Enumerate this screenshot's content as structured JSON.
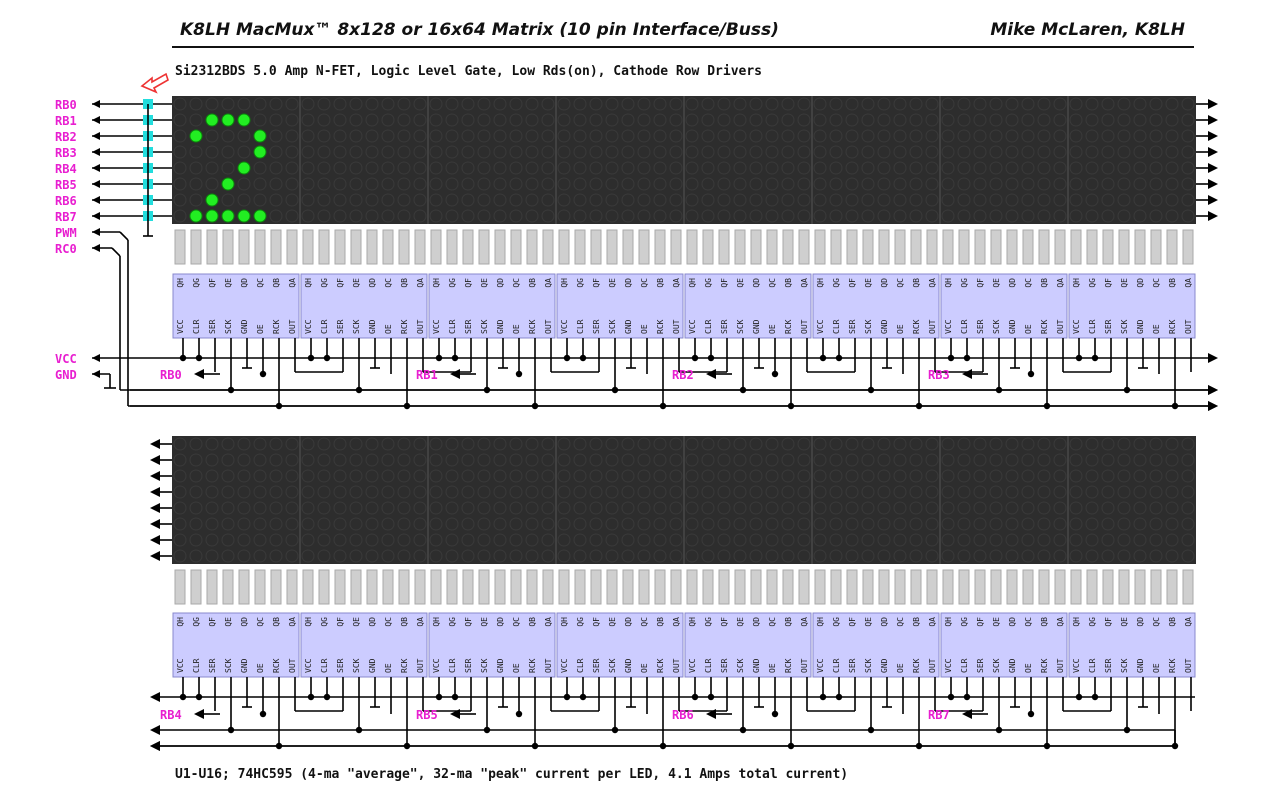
{
  "header": {
    "title": "K8LH MacMux™ 8x128 or 16x64 Matrix (10 pin Interface/Buss)",
    "author": "Mike McLaren, K8LH"
  },
  "notes": {
    "driver_note": "Si2312BDS 5.0 Amp N-FET, Logic Level Gate, Low Rds(on), Cathode Row Drivers",
    "footer_note": "U1-U16; 74HC595 (4-ma \"average\", 32-ma \"peak\" current per LED, 4.1 Amps total current)"
  },
  "left_pins": {
    "rows": [
      "RB0",
      "RB1",
      "RB2",
      "RB3",
      "RB4",
      "RB5",
      "RB6",
      "RB7"
    ],
    "pwm": "PWM",
    "rc0": "RC0",
    "vcc": "VCC",
    "gnd": "GND"
  },
  "chip_pins": {
    "top": [
      "QH",
      "QG",
      "QF",
      "QE",
      "QD",
      "QC",
      "QB",
      "QA"
    ],
    "bottom": [
      "VCC",
      "CLR",
      "SER",
      "SCK",
      "GND",
      "OE",
      "RCK",
      "OUT"
    ]
  },
  "rb_bus_labels": {
    "upper": [
      "RB0",
      "RB1",
      "RB2",
      "RB3"
    ],
    "lower": [
      "RB4",
      "RB5",
      "RB6",
      "RB7"
    ]
  },
  "matrix": {
    "rows": 8,
    "columns_per_module": 8,
    "modules_per_panel": 8,
    "lit_color": "#22ee22",
    "off_color": "#3a3a3a",
    "panel_color": "#2d2d2d",
    "lit_pixels_upper": [
      [
        1,
        2
      ],
      [
        1,
        3
      ],
      [
        1,
        4
      ],
      [
        2,
        1
      ],
      [
        2,
        5
      ],
      [
        3,
        5
      ],
      [
        4,
        4
      ],
      [
        5,
        3
      ],
      [
        6,
        2
      ],
      [
        7,
        1
      ],
      [
        7,
        2
      ],
      [
        7,
        3
      ],
      [
        7,
        4
      ],
      [
        7,
        5
      ]
    ]
  },
  "colors": {
    "chip_fill": "#ccccff",
    "pin_label": "#e81fd0",
    "driver_pad": "#22dddd",
    "arrow": "#ee3333"
  }
}
